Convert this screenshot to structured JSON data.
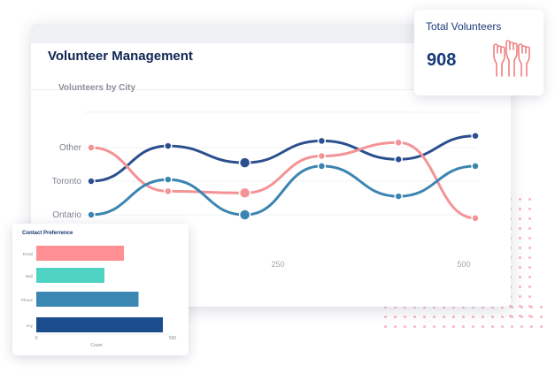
{
  "app": {
    "title": "Volunteer Management"
  },
  "stat": {
    "label": "Total Volunteers",
    "value": "908",
    "icon": "raised-hands-icon",
    "icon_color": "#f08080"
  },
  "line_chart_title": "Volunteers by City",
  "bar_chart_title": "Contact Preferrence",
  "chart_data": [
    {
      "type": "line",
      "title": "Volunteers by City",
      "y_categories": [
        "Ontario",
        "Toronto",
        "Other"
      ],
      "x_tick_labels": [
        "250",
        "500"
      ],
      "xlim": [
        0,
        500
      ],
      "series": [
        {
          "color": "#2b4f8e",
          "points": [
            [
              0,
              1.0
            ],
            [
              100,
              2.05
            ],
            [
              200,
              1.55
            ],
            [
              300,
              2.2
            ],
            [
              400,
              1.65
            ],
            [
              500,
              2.35
            ]
          ]
        },
        {
          "color": "#f49396",
          "points": [
            [
              0,
              2.0
            ],
            [
              100,
              0.7
            ],
            [
              200,
              0.65
            ],
            [
              300,
              1.75
            ],
            [
              400,
              2.15
            ],
            [
              500,
              -0.1
            ]
          ]
        },
        {
          "color": "#3c85b1",
          "points": [
            [
              0,
              0.0
            ],
            [
              100,
              1.05
            ],
            [
              200,
              0.0
            ],
            [
              300,
              1.45
            ],
            [
              400,
              0.55
            ],
            [
              500,
              1.45
            ]
          ]
        }
      ]
    },
    {
      "type": "bar",
      "orientation": "horizontal",
      "title": "Contact Preferrence",
      "categories": [
        "Email",
        "Mail",
        "Phone",
        "Any"
      ],
      "values": [
        270,
        210,
        315,
        390
      ],
      "colors": [
        "#ff8f92",
        "#4fd4c4",
        "#3a87b4",
        "#1b4d8c"
      ],
      "xlabel": "Count",
      "x_tick_labels": [
        "0",
        "500"
      ],
      "xlim": [
        0,
        420
      ]
    }
  ]
}
